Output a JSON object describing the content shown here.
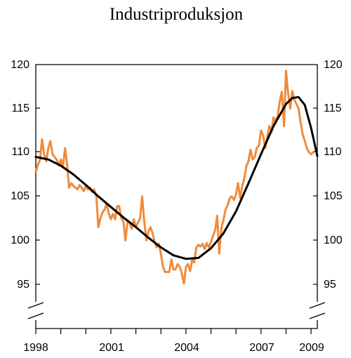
{
  "chart_data": {
    "type": "line",
    "title": "Industriproduksjon",
    "xlabel": "",
    "ylabel": "",
    "x_range": [
      1998.0,
      2009.25
    ],
    "ylim": [
      92,
      120
    ],
    "y_axis_break": true,
    "grid": false,
    "y_ticks": [
      "95",
      "100",
      "105",
      "110",
      "115",
      "120"
    ],
    "x_tick_labels": [
      "1998",
      "2001",
      "2004",
      "2007",
      "2009"
    ],
    "colors": {
      "actual": "#f08a3a",
      "trend": "#000000"
    },
    "series": [
      {
        "x": [
          1998.0,
          1998.08,
          1998.17,
          1998.25,
          1998.33,
          1998.42,
          1998.5,
          1998.58,
          1998.67,
          1998.75,
          1998.83,
          1998.92,
          1999.0,
          1999.08,
          1999.17,
          1999.25,
          1999.33,
          1999.42,
          1999.5,
          1999.58,
          1999.67,
          1999.75,
          1999.83,
          1999.92,
          2000.0,
          2000.08,
          2000.17,
          2000.25,
          2000.33,
          2000.42,
          2000.5,
          2000.58,
          2000.67,
          2000.75,
          2000.83,
          2000.92,
          2001.0,
          2001.08,
          2001.17,
          2001.25,
          2001.33,
          2001.42,
          2001.5,
          2001.58,
          2001.67,
          2001.75,
          2001.83,
          2001.92,
          2002.0,
          2002.08,
          2002.17,
          2002.25,
          2002.33,
          2002.42,
          2002.5,
          2002.58,
          2002.67,
          2002.75,
          2002.83,
          2002.92,
          2003.0,
          2003.08,
          2003.17,
          2003.25,
          2003.33,
          2003.42,
          2003.5,
          2003.58,
          2003.67,
          2003.75,
          2003.83,
          2003.92,
          2004.0,
          2004.08,
          2004.17,
          2004.25,
          2004.33,
          2004.42,
          2004.5,
          2004.58,
          2004.67,
          2004.75,
          2004.83,
          2004.92,
          2005.0,
          2005.08,
          2005.17,
          2005.25,
          2005.33,
          2005.42,
          2005.5,
          2005.58,
          2005.67,
          2005.75,
          2005.83,
          2005.92,
          2006.0,
          2006.08,
          2006.17,
          2006.25,
          2006.33,
          2006.42,
          2006.5,
          2006.58,
          2006.67,
          2006.75,
          2006.83,
          2006.92,
          2007.0,
          2007.08,
          2007.17,
          2007.25,
          2007.33,
          2007.42,
          2007.5,
          2007.58,
          2007.67,
          2007.75,
          2007.83,
          2007.92,
          2008.0,
          2008.08,
          2008.17,
          2008.25,
          2008.33,
          2008.42,
          2008.5,
          2008.58,
          2008.67,
          2008.75,
          2008.83,
          2008.92,
          2009.0,
          2009.08
        ],
        "values": [
          107.8,
          108.6,
          109.2,
          111.5,
          109.8,
          109.0,
          110.5,
          111.3,
          109.8,
          109.5,
          109.2,
          108.5,
          109.2,
          108.3,
          110.5,
          108.6,
          106.0,
          106.5,
          106.2,
          106.0,
          105.8,
          106.3,
          106.0,
          105.6,
          106.2,
          105.8,
          106.0,
          105.5,
          105.8,
          105.0,
          101.5,
          102.5,
          103.2,
          103.5,
          104.2,
          103.0,
          102.4,
          103.0,
          102.4,
          103.9,
          103.9,
          102.5,
          102.2,
          100.0,
          102.2,
          102.0,
          101.3,
          102.4,
          101.5,
          102.0,
          102.5,
          105.0,
          102.3,
          100.0,
          101.0,
          101.5,
          100.8,
          99.8,
          99.2,
          99.6,
          98.5,
          97.0,
          96.4,
          96.4,
          96.4,
          97.8,
          96.7,
          96.7,
          97.3,
          97.0,
          96.3,
          95.1,
          97.0,
          97.3,
          96.5,
          97.8,
          97.5,
          99.2,
          99.5,
          99.3,
          99.6,
          99.0,
          99.7,
          99.2,
          99.8,
          100.5,
          101.2,
          102.8,
          98.5,
          101.5,
          102.3,
          103.5,
          104.0,
          104.8,
          105.0,
          104.6,
          105.2,
          106.5,
          104.8,
          106.2,
          107.0,
          108.5,
          109.0,
          110.3,
          109.2,
          109.5,
          110.5,
          110.8,
          112.5,
          112.0,
          110.5,
          111.8,
          113.0,
          112.3,
          114.0,
          113.5,
          114.2,
          115.8,
          116.9,
          113.0,
          119.3,
          116.8,
          115.0,
          117.0,
          116.0,
          115.5,
          115.0,
          113.5,
          112.0,
          111.3,
          110.5,
          110.0,
          109.8,
          110.0
        ]
      },
      {
        "x": [
          1998.0,
          1998.5,
          1999.0,
          1999.5,
          2000.0,
          2000.5,
          2001.0,
          2001.5,
          2002.0,
          2002.5,
          2003.0,
          2003.5,
          2004.0,
          2004.5,
          2005.0,
          2005.5,
          2006.0,
          2006.5,
          2007.0,
          2007.5,
          2008.0,
          2008.25,
          2008.5,
          2008.75,
          2009.0,
          2009.25
        ],
        "values": [
          109.5,
          109.2,
          108.5,
          107.5,
          106.3,
          105.0,
          103.8,
          102.6,
          101.5,
          100.3,
          99.2,
          98.3,
          97.9,
          98.0,
          99.1,
          100.8,
          103.3,
          106.5,
          109.8,
          113.0,
          115.5,
          116.2,
          116.3,
          115.4,
          112.8,
          109.6
        ]
      }
    ]
  }
}
